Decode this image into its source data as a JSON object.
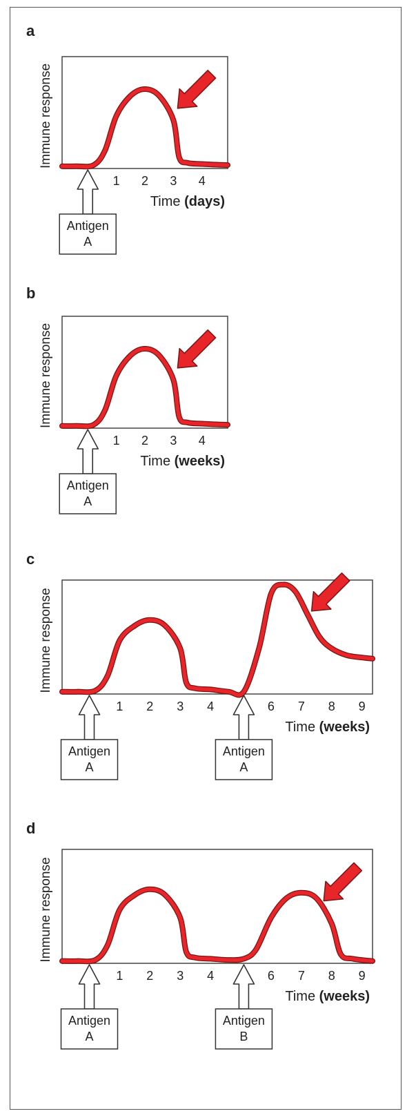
{
  "chart_data": [
    {
      "type": "line",
      "panel_label": "a",
      "ylabel": "Immune response",
      "xlabel_prefix": "Time",
      "xlabel_unit": "(days)",
      "xticks": [
        "1",
        "2",
        "3",
        "4"
      ],
      "xlim": [
        -0.9,
        4.9
      ],
      "ylim": [
        0,
        1
      ],
      "curve": {
        "x": [
          -0.9,
          -0.4,
          0.2,
          0.6,
          1.0,
          1.5,
          2.0,
          2.5,
          3.0,
          3.2,
          3.5,
          4.0,
          4.9
        ],
        "y": [
          0.02,
          0.02,
          0.03,
          0.16,
          0.47,
          0.65,
          0.71,
          0.65,
          0.43,
          0.1,
          0.05,
          0.04,
          0.03
        ]
      },
      "highlight_x": 3.0,
      "highlight_y": 0.55,
      "annotations": [
        {
          "x": 0,
          "lines": [
            "Antigen",
            "A"
          ]
        }
      ]
    },
    {
      "type": "line",
      "panel_label": "b",
      "ylabel": "Immune response",
      "xlabel_prefix": "Time",
      "xlabel_unit": "(weeks)",
      "xticks": [
        "1",
        "2",
        "3",
        "4"
      ],
      "xlim": [
        -0.9,
        4.9
      ],
      "ylim": [
        0,
        1
      ],
      "curve": {
        "x": [
          -0.9,
          -0.4,
          0.2,
          0.6,
          1.0,
          1.5,
          2.0,
          2.5,
          3.0,
          3.2,
          3.5,
          4.0,
          4.9
        ],
        "y": [
          0.02,
          0.02,
          0.03,
          0.16,
          0.47,
          0.65,
          0.71,
          0.65,
          0.43,
          0.1,
          0.05,
          0.04,
          0.03
        ]
      },
      "highlight_x": 3.0,
      "highlight_y": 0.55,
      "annotations": [
        {
          "x": 0,
          "lines": [
            "Antigen",
            "A"
          ]
        }
      ]
    },
    {
      "type": "line",
      "panel_label": "c",
      "ylabel": "Immune response",
      "xlabel_prefix": "Time",
      "xlabel_unit": "(weeks)",
      "xticks": [
        "1",
        "2",
        "3",
        "4",
        "6",
        "7",
        "8",
        "9"
      ],
      "xtick_values": [
        1,
        2,
        3,
        4,
        6,
        7,
        8,
        9
      ],
      "xlim": [
        -0.9,
        9.35
      ],
      "ylim": [
        0,
        1
      ],
      "curve": {
        "x": [
          -0.9,
          -0.4,
          0.2,
          0.6,
          1.0,
          1.5,
          2.0,
          2.5,
          3.0,
          3.2,
          3.5,
          4.0,
          4.6,
          5.1,
          5.6,
          6.0,
          6.4,
          6.8,
          7.2,
          7.6,
          8.0,
          8.5,
          9.0,
          9.35
        ],
        "y": [
          0.02,
          0.02,
          0.03,
          0.16,
          0.47,
          0.6,
          0.65,
          0.6,
          0.4,
          0.1,
          0.05,
          0.04,
          0.02,
          0.02,
          0.4,
          0.88,
          0.96,
          0.9,
          0.7,
          0.5,
          0.4,
          0.34,
          0.32,
          0.31
        ]
      },
      "highlight_x": 7.2,
      "highlight_y": 0.74,
      "annotations": [
        {
          "x": 0,
          "lines": [
            "Antigen",
            "A"
          ]
        },
        {
          "x": 5.1,
          "lines": [
            "Antigen",
            "A"
          ]
        }
      ]
    },
    {
      "type": "line",
      "panel_label": "d",
      "ylabel": "Immune response",
      "xlabel_prefix": "Time",
      "xlabel_unit": "(weeks)",
      "xticks": [
        "1",
        "2",
        "3",
        "4",
        "6",
        "7",
        "8",
        "9"
      ],
      "xtick_values": [
        1,
        2,
        3,
        4,
        6,
        7,
        8,
        9
      ],
      "xlim": [
        -0.9,
        9.35
      ],
      "ylim": [
        0,
        1
      ],
      "curve": {
        "x": [
          -0.9,
          -0.4,
          0.2,
          0.6,
          1.0,
          1.5,
          2.0,
          2.5,
          3.0,
          3.2,
          3.5,
          4.0,
          4.6,
          5.1,
          5.5,
          6.0,
          6.5,
          7.0,
          7.5,
          8.0,
          8.3,
          8.7,
          9.35
        ],
        "y": [
          0.02,
          0.02,
          0.03,
          0.16,
          0.47,
          0.6,
          0.65,
          0.6,
          0.4,
          0.1,
          0.05,
          0.04,
          0.03,
          0.04,
          0.12,
          0.4,
          0.57,
          0.62,
          0.57,
          0.35,
          0.08,
          0.04,
          0.02
        ]
      },
      "highlight_x": 7.6,
      "highlight_y": 0.56,
      "annotations": [
        {
          "x": 0,
          "lines": [
            "Antigen",
            "A"
          ]
        },
        {
          "x": 5.1,
          "lines": [
            "Antigen",
            "B"
          ]
        }
      ]
    }
  ]
}
